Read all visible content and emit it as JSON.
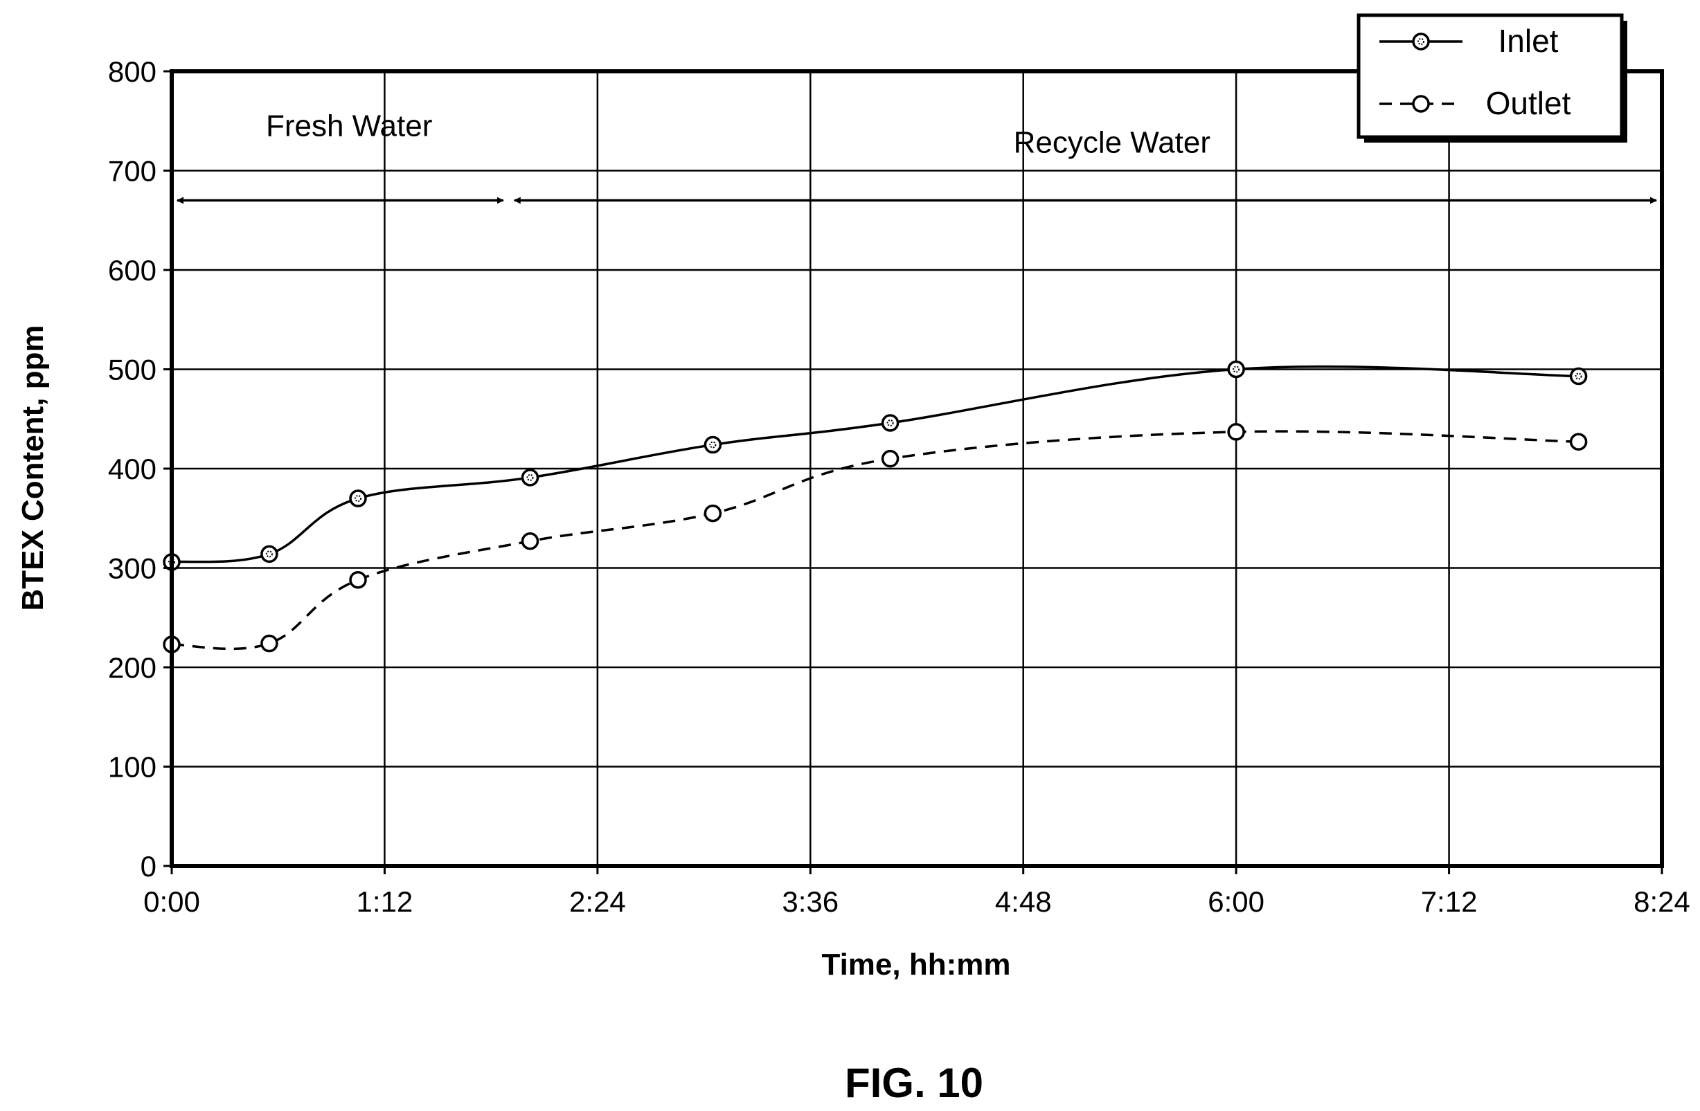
{
  "figure_label": "FIG. 10",
  "chart_data": {
    "type": "line",
    "title": "",
    "xlabel": "Time, hh:mm",
    "ylabel": "BTEX Content, ppm",
    "x_unit": "hours",
    "xlim": [
      0,
      8.4
    ],
    "ylim": [
      0,
      800
    ],
    "x_ticks": [
      0,
      1.2,
      2.4,
      3.6,
      4.8,
      6.0,
      7.2,
      8.4
    ],
    "x_tick_labels": [
      "0:00",
      "1:12",
      "2:24",
      "3:36",
      "4:48",
      "6:00",
      "7:12",
      "8:24"
    ],
    "y_ticks": [
      0,
      100,
      200,
      300,
      400,
      500,
      600,
      700,
      800
    ],
    "y_tick_labels": [
      "0",
      "100",
      "200",
      "300",
      "400",
      "500",
      "600",
      "700",
      "800"
    ],
    "grid": true,
    "legend_position": "top-right",
    "series": [
      {
        "name": "Inlet",
        "style": "solid",
        "marker": "dotted-circle",
        "color": "#000000",
        "x": [
          0.0,
          0.55,
          1.05,
          2.02,
          3.05,
          4.05,
          6.0,
          7.93
        ],
        "values": [
          306,
          314,
          370,
          391,
          424,
          446,
          500,
          493
        ]
      },
      {
        "name": "Outlet",
        "style": "dashed",
        "marker": "open-circle",
        "color": "#000000",
        "x": [
          0.0,
          0.55,
          1.05,
          2.02,
          3.05,
          4.05,
          6.0,
          7.93
        ],
        "values": [
          223,
          224,
          288,
          327,
          355,
          410,
          437,
          427
        ]
      }
    ],
    "annotations": [
      {
        "text": "Fresh Water",
        "x_range": [
          0.0,
          1.9
        ]
      },
      {
        "text": "Recycle Water",
        "x_range": [
          1.9,
          8.4
        ]
      }
    ]
  }
}
